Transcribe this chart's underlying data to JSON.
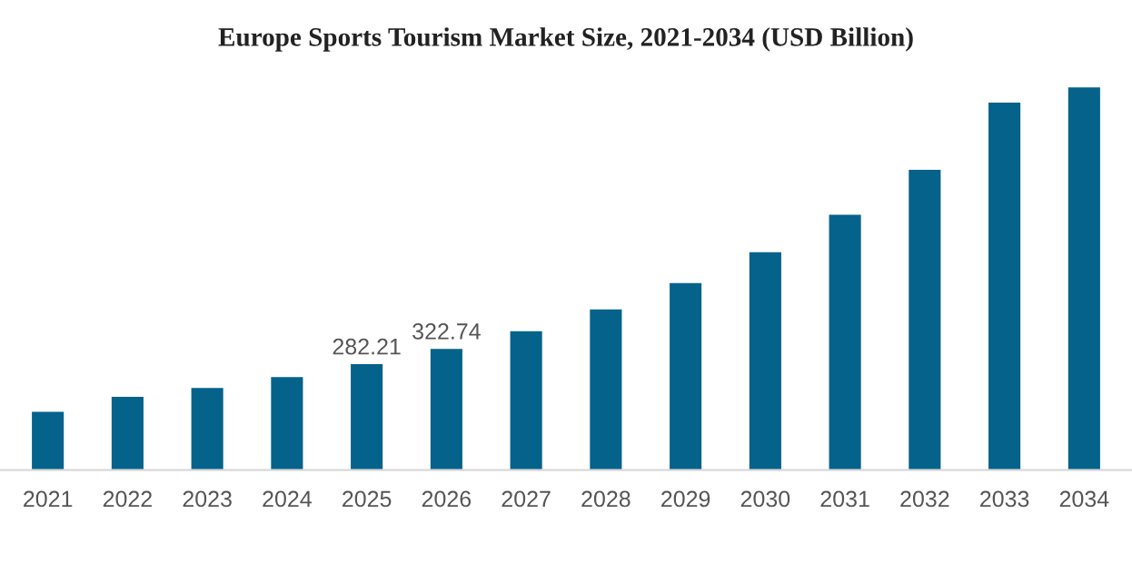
{
  "chart_data": {
    "type": "bar",
    "title": "Europe Sports Tourism Market Size, 2021-2034 (USD Billion)",
    "categories": [
      "2021",
      "2022",
      "2023",
      "2024",
      "2025",
      "2026",
      "2027",
      "2028",
      "2029",
      "2030",
      "2031",
      "2032",
      "2033",
      "2034"
    ],
    "values": [
      155,
      195,
      219,
      248,
      282.21,
      322.74,
      370,
      428,
      498,
      580,
      680,
      800,
      979,
      1019
    ],
    "value_labels": [
      null,
      null,
      null,
      null,
      "282.21",
      "322.74",
      null,
      null,
      null,
      null,
      null,
      null,
      null,
      null
    ],
    "color": "#05628a",
    "grid": false,
    "legend": false
  }
}
